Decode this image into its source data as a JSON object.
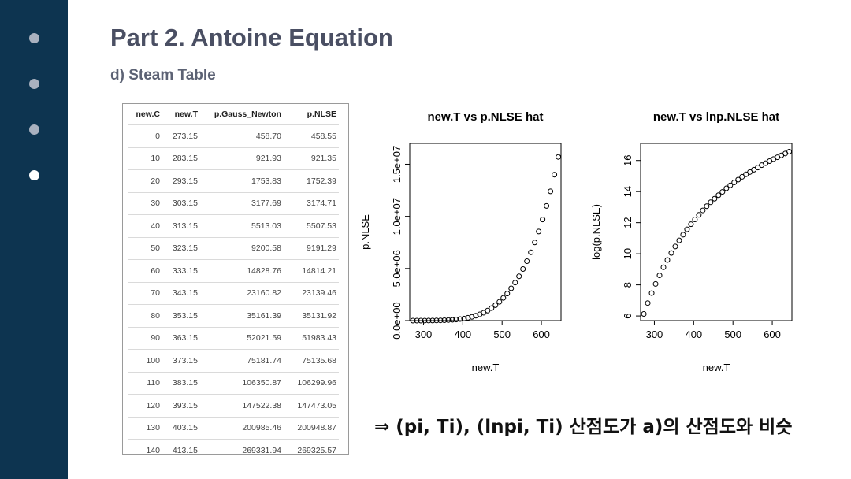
{
  "sidebar": {
    "dots": [
      "",
      "",
      "",
      ""
    ],
    "active_index": 3
  },
  "slide": {
    "title": "Part 2. Antoine Equation",
    "subtitle": "d) Steam Table",
    "note": "⇒  (pi, Ti), (lnpi, Ti) 산점도가 a)의 산점도와 비슷"
  },
  "table": {
    "headers": [
      "new.C",
      "new.T",
      "p.Gauss_Newton",
      "p.NLSE"
    ],
    "rows": [
      [
        "0",
        "273.15",
        "458.70",
        "458.55"
      ],
      [
        "10",
        "283.15",
        "921.93",
        "921.35"
      ],
      [
        "20",
        "293.15",
        "1753.83",
        "1752.39"
      ],
      [
        "30",
        "303.15",
        "3177.69",
        "3174.71"
      ],
      [
        "40",
        "313.15",
        "5513.03",
        "5507.53"
      ],
      [
        "50",
        "323.15",
        "9200.58",
        "9191.29"
      ],
      [
        "60",
        "333.15",
        "14828.76",
        "14814.21"
      ],
      [
        "70",
        "343.15",
        "23160.82",
        "23139.46"
      ],
      [
        "80",
        "353.15",
        "35161.39",
        "35131.92"
      ],
      [
        "90",
        "363.15",
        "52021.59",
        "51983.43"
      ],
      [
        "100",
        "373.15",
        "75181.74",
        "75135.68"
      ],
      [
        "110",
        "383.15",
        "106350.87",
        "106299.96"
      ],
      [
        "120",
        "393.15",
        "147522.38",
        "147473.05"
      ],
      [
        "130",
        "403.15",
        "200985.46",
        "200948.87"
      ],
      [
        "140",
        "413.15",
        "269331.94",
        "269325.57"
      ]
    ]
  },
  "chart_data": [
    {
      "type": "scatter",
      "title": "new.T vs p.NLSE hat",
      "xlabel": "new.T",
      "ylabel": "p.NLSE",
      "xlim": [
        265,
        650
      ],
      "ylim": [
        0,
        17000000
      ],
      "xticks": [
        300,
        400,
        500,
        600
      ],
      "yticks": [
        0,
        5000000,
        10000000,
        15000000
      ],
      "yticklabels": [
        "0.0e+00",
        "5.0e+06",
        "1.0e+07",
        "1.5e+07"
      ],
      "x": [
        273.15,
        283.15,
        293.15,
        303.15,
        313.15,
        323.15,
        333.15,
        343.15,
        353.15,
        363.15,
        373.15,
        383.15,
        393.15,
        403.15,
        413.15,
        423.15,
        433.15,
        443.15,
        453.15,
        463.15,
        473.15,
        483.15,
        493.15,
        503.15,
        513.15,
        523.15,
        533.15,
        543.15,
        553.15,
        563.15,
        573.15,
        583.15,
        593.15,
        603.15,
        613.15,
        623.15,
        633.15,
        643.15
      ],
      "y": [
        459,
        921,
        1752,
        3175,
        5508,
        9191,
        14814,
        23139,
        35132,
        51983,
        75136,
        106300,
        147473,
        200949,
        269326,
        360000,
        470000,
        600000,
        760000,
        960000,
        1200000,
        1480000,
        1800000,
        2180000,
        2600000,
        3100000,
        3650000,
        4250000,
        4950000,
        5700000,
        6550000,
        7500000,
        8550000,
        9700000,
        11000000,
        12400000,
        14000000,
        15700000
      ]
    },
    {
      "type": "scatter",
      "title": "new.T vs lnp.NLSE hat",
      "xlabel": "new.T",
      "ylabel": "log(p.NLSE)",
      "xlim": [
        265,
        650
      ],
      "ylim": [
        5.7,
        17.1
      ],
      "xticks": [
        300,
        400,
        500,
        600
      ],
      "yticks": [
        6,
        8,
        10,
        12,
        14,
        16
      ],
      "yticklabels": [
        "6",
        "8",
        "10",
        "12",
        "14",
        "16"
      ],
      "x": [
        273.15,
        283.15,
        293.15,
        303.15,
        313.15,
        323.15,
        333.15,
        343.15,
        353.15,
        363.15,
        373.15,
        383.15,
        393.15,
        403.15,
        413.15,
        423.15,
        433.15,
        443.15,
        453.15,
        463.15,
        473.15,
        483.15,
        493.15,
        503.15,
        513.15,
        523.15,
        533.15,
        543.15,
        553.15,
        563.15,
        573.15,
        583.15,
        593.15,
        603.15,
        613.15,
        623.15,
        633.15,
        643.15
      ],
      "y": [
        6.13,
        6.83,
        7.47,
        8.06,
        8.61,
        9.13,
        9.6,
        10.05,
        10.47,
        10.86,
        11.23,
        11.57,
        11.9,
        12.21,
        12.5,
        12.79,
        13.06,
        13.31,
        13.54,
        13.77,
        13.98,
        14.21,
        14.4,
        14.59,
        14.77,
        14.95,
        15.11,
        15.26,
        15.41,
        15.55,
        15.7,
        15.83,
        15.96,
        16.09,
        16.21,
        16.33,
        16.45,
        16.57
      ]
    }
  ]
}
